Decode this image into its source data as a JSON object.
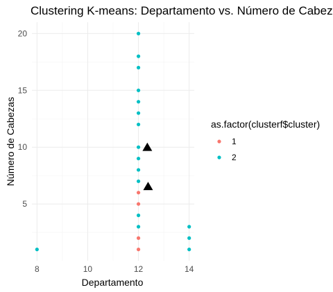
{
  "chart_data": {
    "type": "scatter",
    "title": "Clustering K-means: Departamento vs. Número de Cabezas",
    "xlabel": "Departamento",
    "ylabel": "Número de Cabezas",
    "xlim": [
      7.8,
      14.2
    ],
    "ylim": [
      0,
      21
    ],
    "x_ticks": [
      8,
      10,
      12,
      14
    ],
    "y_ticks": [
      5,
      10,
      15,
      20
    ],
    "legend": {
      "title": "as.factor(clusterf$cluster)",
      "placement": "right",
      "entries": [
        {
          "label": "1",
          "color": "#F8766D"
        },
        {
          "label": "2",
          "color": "#00BFC4"
        }
      ]
    },
    "series": [
      {
        "name": "1",
        "color": "#F8766D",
        "points": [
          [
            12,
            1
          ],
          [
            12,
            2
          ],
          [
            12,
            5
          ],
          [
            12,
            6
          ]
        ]
      },
      {
        "name": "2",
        "color": "#00BFC4",
        "points": [
          [
            8,
            1
          ],
          [
            12,
            3
          ],
          [
            12,
            4
          ],
          [
            12,
            7
          ],
          [
            12,
            8
          ],
          [
            12,
            9
          ],
          [
            12,
            10
          ],
          [
            12,
            12
          ],
          [
            12,
            13
          ],
          [
            12,
            14
          ],
          [
            12,
            15
          ],
          [
            12,
            17
          ],
          [
            12,
            18
          ],
          [
            12,
            20
          ],
          [
            14,
            1
          ],
          [
            14,
            2
          ],
          [
            14,
            3
          ]
        ]
      }
    ],
    "centroids": {
      "color": "#000000",
      "shape": "triangle",
      "points": [
        [
          12.35,
          9.95
        ],
        [
          12.38,
          6.5
        ]
      ]
    }
  }
}
